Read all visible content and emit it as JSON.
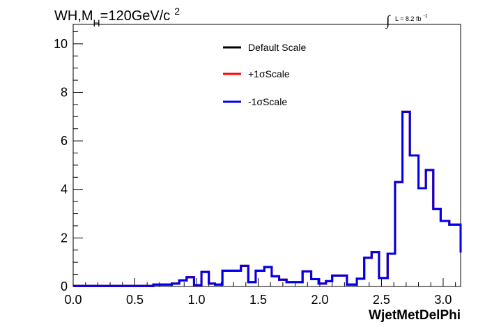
{
  "chart_data": {
    "type": "line",
    "title": {
      "prefix": "WH,M",
      "subscript": "H",
      "main": "=120GeV/c",
      "superscript": "2"
    },
    "lumi": {
      "symbol": "∫",
      "text": "L = 8.2 fb",
      "superscript": "-1"
    },
    "xlabel": "WjetMetDelPhi",
    "ylabel": "",
    "xlim": [
      0,
      3.1416
    ],
    "ylim": [
      0,
      10.8
    ],
    "x_ticks": [
      "0.0",
      "0.5",
      "1.0",
      "1.5",
      "2.0",
      "2.5",
      "3.0"
    ],
    "y_ticks": [
      "0",
      "2",
      "4",
      "6",
      "8",
      "10"
    ],
    "grid": false,
    "legend_position": "top-center",
    "bin_edges": [
      0.0,
      0.1047,
      0.2094,
      0.3142,
      0.4189,
      0.5236,
      0.6283,
      0.733,
      0.8378,
      0.9425,
      1.0472,
      1.1519,
      1.2566,
      1.3614,
      1.4661,
      1.5708,
      1.6755,
      1.7802,
      1.885,
      1.9897,
      2.0944,
      2.1991,
      2.3038,
      2.4086,
      2.5133,
      2.618,
      2.7227,
      2.8274,
      2.9322,
      3.0369,
      3.1416
    ],
    "bin_edges_fine_note": "",
    "series": [
      {
        "name": "Default Scale",
        "color": "#000000",
        "x": [
          0.0,
          0.52,
          0.58,
          0.65,
          0.8,
          0.86,
          0.92,
          0.98,
          1.04,
          1.1,
          1.15,
          1.21,
          1.3,
          1.36,
          1.42,
          1.48,
          1.55,
          1.61,
          1.67,
          1.73,
          1.8,
          1.86,
          1.93,
          1.99,
          2.05,
          2.1,
          2.22,
          2.3,
          2.36,
          2.42,
          2.48,
          2.55,
          2.61,
          2.67,
          2.73,
          2.8,
          2.86,
          2.92,
          2.98,
          3.05,
          3.1416
        ],
        "values": [
          0.02,
          0.02,
          0.02,
          0.08,
          0.12,
          0.25,
          0.38,
          0.05,
          0.6,
          0.12,
          0.08,
          0.65,
          0.65,
          0.85,
          0.18,
          0.65,
          0.8,
          0.42,
          0.28,
          0.18,
          0.18,
          0.62,
          0.3,
          0.12,
          0.22,
          0.45,
          0.08,
          0.32,
          1.18,
          1.42,
          0.35,
          1.35,
          4.3,
          7.2,
          5.4,
          4.05,
          4.8,
          3.2,
          2.7,
          2.55,
          1.4
        ]
      },
      {
        "name": "+1σScale",
        "color": "#ff0000",
        "x": [
          0.0,
          0.52,
          0.58,
          0.65,
          0.8,
          0.86,
          0.92,
          0.98,
          1.04,
          1.1,
          1.15,
          1.21,
          1.3,
          1.36,
          1.42,
          1.48,
          1.55,
          1.61,
          1.67,
          1.73,
          1.8,
          1.86,
          1.93,
          1.99,
          2.05,
          2.1,
          2.22,
          2.3,
          2.36,
          2.42,
          2.48,
          2.55,
          2.61,
          2.67,
          2.73,
          2.8,
          2.86,
          2.92,
          2.98,
          3.05,
          3.1416
        ],
        "values": [
          0.02,
          0.02,
          0.02,
          0.08,
          0.12,
          0.25,
          0.38,
          0.05,
          0.6,
          0.12,
          0.08,
          0.65,
          0.65,
          0.85,
          0.18,
          0.65,
          0.8,
          0.42,
          0.28,
          0.18,
          0.18,
          0.62,
          0.3,
          0.12,
          0.22,
          0.45,
          0.08,
          0.32,
          1.18,
          1.42,
          0.35,
          1.35,
          4.3,
          7.2,
          5.4,
          4.05,
          4.8,
          3.2,
          2.7,
          2.55,
          1.4
        ]
      },
      {
        "name": "-1σScale",
        "color": "#0000ee",
        "x": [
          0.0,
          0.52,
          0.58,
          0.65,
          0.8,
          0.86,
          0.92,
          0.98,
          1.04,
          1.1,
          1.15,
          1.21,
          1.3,
          1.36,
          1.42,
          1.48,
          1.55,
          1.61,
          1.67,
          1.73,
          1.8,
          1.86,
          1.93,
          1.99,
          2.05,
          2.1,
          2.22,
          2.3,
          2.36,
          2.42,
          2.48,
          2.55,
          2.61,
          2.67,
          2.73,
          2.8,
          2.86,
          2.92,
          2.98,
          3.05,
          3.1416
        ],
        "values": [
          0.02,
          0.02,
          0.02,
          0.08,
          0.12,
          0.25,
          0.38,
          0.05,
          0.6,
          0.12,
          0.08,
          0.65,
          0.65,
          0.85,
          0.18,
          0.65,
          0.8,
          0.42,
          0.28,
          0.18,
          0.18,
          0.62,
          0.3,
          0.12,
          0.22,
          0.45,
          0.08,
          0.32,
          1.18,
          1.42,
          0.35,
          1.35,
          4.3,
          7.2,
          5.4,
          4.05,
          4.8,
          3.2,
          2.7,
          2.55,
          1.4
        ]
      }
    ]
  }
}
